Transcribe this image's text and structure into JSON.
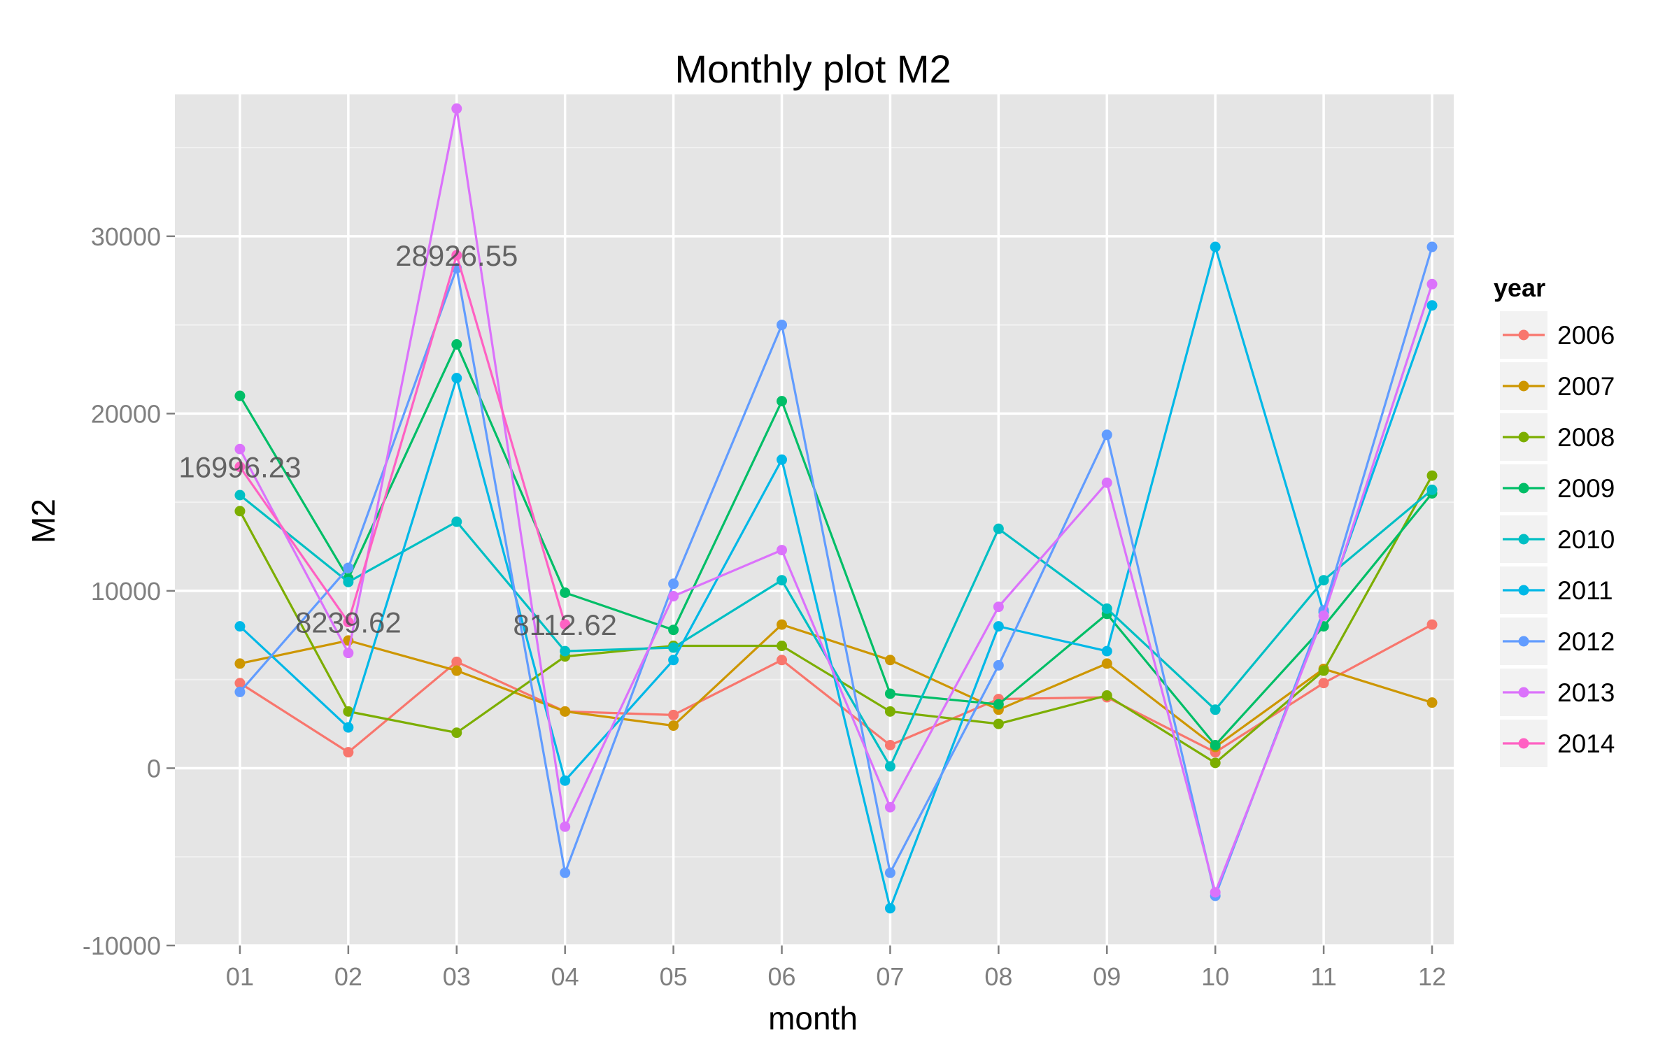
{
  "chart_data": {
    "type": "line",
    "title": "Monthly plot M2",
    "xlabel": "month",
    "ylabel": "M2",
    "categories": [
      "01",
      "02",
      "03",
      "04",
      "05",
      "06",
      "07",
      "08",
      "09",
      "10",
      "11",
      "12"
    ],
    "ylim": [
      -10000,
      38000
    ],
    "yticks": [
      -10000,
      0,
      10000,
      20000,
      30000
    ],
    "ytick_labels": [
      "-10000",
      "0",
      "10000",
      "20000",
      "30000"
    ],
    "grid": true,
    "legend": {
      "title": "year",
      "position": "right"
    },
    "series": [
      {
        "name": "2006",
        "color": "#F8766D",
        "values": [
          4800,
          900,
          6000,
          3200,
          3000,
          6100,
          1300,
          3900,
          4000,
          900,
          4800,
          8100
        ]
      },
      {
        "name": "2007",
        "color": "#CD9600",
        "values": [
          5900,
          7200,
          5500,
          3200,
          2400,
          8100,
          6100,
          3300,
          5900,
          1200,
          5600,
          3700
        ]
      },
      {
        "name": "2008",
        "color": "#7CAE00",
        "values": [
          14500,
          3200,
          2000,
          6300,
          6900,
          6900,
          3200,
          2500,
          4100,
          300,
          5500,
          16500
        ]
      },
      {
        "name": "2009",
        "color": "#00BE67",
        "values": [
          21000,
          10700,
          23900,
          9900,
          7800,
          20700,
          4200,
          3600,
          8700,
          1300,
          8000,
          15500
        ]
      },
      {
        "name": "2010",
        "color": "#00BFC4",
        "values": [
          15400,
          10500,
          13900,
          6600,
          6800,
          10600,
          100,
          13500,
          9000,
          3300,
          10600,
          15700
        ]
      },
      {
        "name": "2011",
        "color": "#00B8E7",
        "values": [
          8000,
          2300,
          22000,
          -700,
          6100,
          17400,
          -7900,
          8000,
          6600,
          29400,
          8800,
          26100
        ]
      },
      {
        "name": "2012",
        "color": "#619CFF",
        "values": [
          4300,
          11300,
          28200,
          -5900,
          10400,
          25000,
          -5900,
          5800,
          18800,
          -7200,
          8900,
          29400
        ]
      },
      {
        "name": "2013",
        "color": "#DB72FB",
        "values": [
          18000,
          6500,
          37200,
          -3300,
          9700,
          12300,
          -2200,
          9100,
          16100,
          -7000,
          8600,
          27300
        ]
      },
      {
        "name": "2014",
        "color": "#FF61C3",
        "values": [
          16996.23,
          8239.62,
          28926.55,
          8112.62,
          null,
          null,
          null,
          null,
          null,
          null,
          null,
          null
        ]
      }
    ],
    "annotations": [
      {
        "text": "16996.23",
        "category": "01",
        "value": 16996.23
      },
      {
        "text": "8239.62",
        "category": "02",
        "value": 8239.62
      },
      {
        "text": "28926.55",
        "category": "03",
        "value": 28926.55
      },
      {
        "text": "8112.62",
        "category": "04",
        "value": 8112.62
      }
    ]
  }
}
